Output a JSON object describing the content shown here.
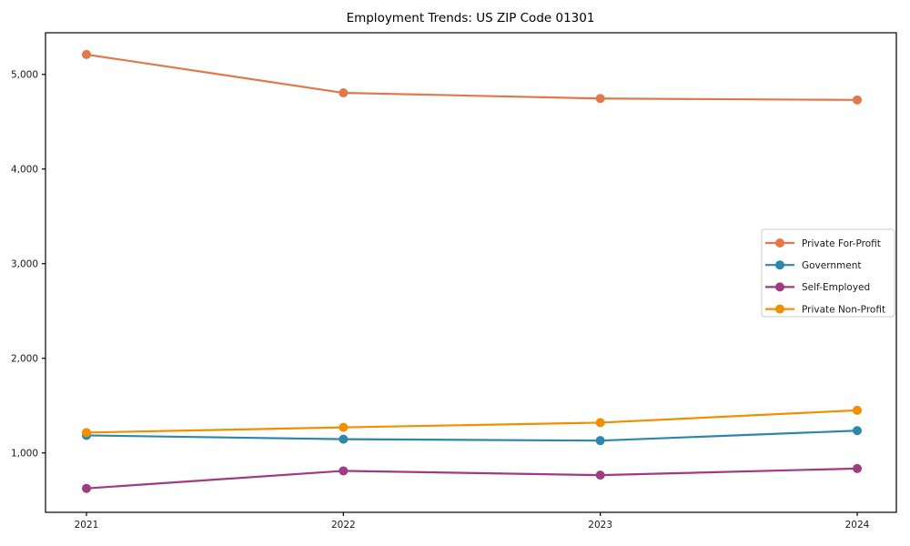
{
  "page": {
    "background": "#ffffff",
    "axis_color": "#000000",
    "text_color": "#1a1a1a",
    "legend_border_color": "#cccccc",
    "legend_background": "#ffffff"
  },
  "chart_data": {
    "type": "line",
    "title": "Employment Trends: US ZIP Code 01301",
    "categories": [
      "2021",
      "2022",
      "2023",
      "2024"
    ],
    "series": [
      {
        "name": "Private For-Profit",
        "color": "#E2784A",
        "values": [
          5210,
          4805,
          4745,
          4730
        ]
      },
      {
        "name": "Government",
        "color": "#2E86AB",
        "values": [
          1185,
          1145,
          1130,
          1235
        ]
      },
      {
        "name": "Self-Employed",
        "color": "#A13A80",
        "values": [
          625,
          810,
          765,
          835
        ]
      },
      {
        "name": "Private Non-Profit",
        "color": "#F18F01",
        "values": [
          1215,
          1270,
          1320,
          1450
        ]
      }
    ],
    "yticks": [
      {
        "value": 1000,
        "label": "1,000"
      },
      {
        "value": 2000,
        "label": "2,000"
      },
      {
        "value": 3000,
        "label": "3,000"
      },
      {
        "value": 4000,
        "label": "4,000"
      },
      {
        "value": 5000,
        "label": "5,000"
      }
    ],
    "ylim": [
      372,
      5440
    ],
    "xlabel": "",
    "ylabel": "",
    "grid": false,
    "legend_position": "right-center",
    "marker": "circle"
  }
}
